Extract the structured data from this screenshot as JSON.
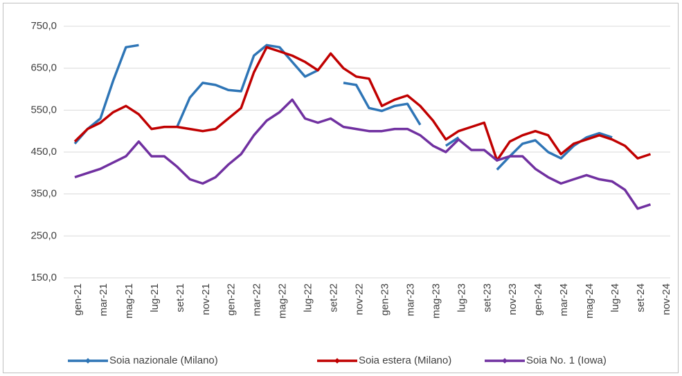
{
  "chart_data": {
    "type": "line",
    "categories": [
      "gen-21",
      null,
      "mar-21",
      null,
      "mag-21",
      null,
      "lug-21",
      null,
      "set-21",
      null,
      "nov-21",
      null,
      "gen-22",
      null,
      "mar-22",
      null,
      "mag-22",
      null,
      "lug-22",
      null,
      "set-22",
      null,
      "nov-22",
      null,
      "gen-23",
      null,
      "mar-23",
      null,
      "mag-23",
      null,
      "lug-23",
      null,
      "set-23",
      null,
      "nov-23",
      null,
      "gen-24",
      null,
      "mar-24",
      null,
      "mag-24",
      null,
      "lug-24",
      null,
      "set-24",
      null,
      "nov-24"
    ],
    "series": [
      {
        "name": "Soia nazionale (Milano)",
        "color": "#2e75b6",
        "values": [
          470,
          505,
          530,
          620,
          700,
          705,
          null,
          null,
          510,
          580,
          615,
          610,
          598,
          595,
          680,
          705,
          700,
          665,
          630,
          645,
          null,
          615,
          610,
          555,
          548,
          560,
          565,
          515,
          null,
          465,
          485,
          null,
          null,
          408,
          440,
          470,
          478,
          450,
          435,
          465,
          485,
          495,
          485,
          null,
          null,
          null,
          null
        ]
      },
      {
        "name": "Soia estera (Milano)",
        "color": "#c00000",
        "values": [
          475,
          505,
          520,
          545,
          560,
          540,
          505,
          510,
          510,
          505,
          500,
          505,
          530,
          555,
          640,
          700,
          690,
          680,
          665,
          645,
          685,
          650,
          630,
          625,
          560,
          575,
          585,
          560,
          525,
          480,
          500,
          510,
          520,
          430,
          475,
          490,
          500,
          490,
          445,
          470,
          480,
          490,
          480,
          465,
          435,
          445,
          null
        ]
      },
      {
        "name": "Soia No. 1 (Iowa)",
        "color": "#7030a0",
        "values": [
          390,
          400,
          410,
          425,
          440,
          475,
          440,
          440,
          415,
          385,
          375,
          390,
          420,
          445,
          490,
          525,
          545,
          575,
          530,
          520,
          530,
          510,
          505,
          500,
          500,
          505,
          505,
          490,
          465,
          450,
          480,
          455,
          455,
          430,
          440,
          440,
          410,
          390,
          375,
          385,
          395,
          385,
          380,
          360,
          315,
          325,
          null
        ]
      }
    ],
    "ylim": [
      150,
      750
    ],
    "yticks": [
      {
        "value": 150,
        "label": "150,0"
      },
      {
        "value": 250,
        "label": "250,0"
      },
      {
        "value": 350,
        "label": "350,0"
      },
      {
        "value": 450,
        "label": "450,0"
      },
      {
        "value": 550,
        "label": "550,0"
      },
      {
        "value": 650,
        "label": "650,0"
      },
      {
        "value": 750,
        "label": "750,0"
      }
    ],
    "grid": true,
    "legend": "bottom"
  }
}
